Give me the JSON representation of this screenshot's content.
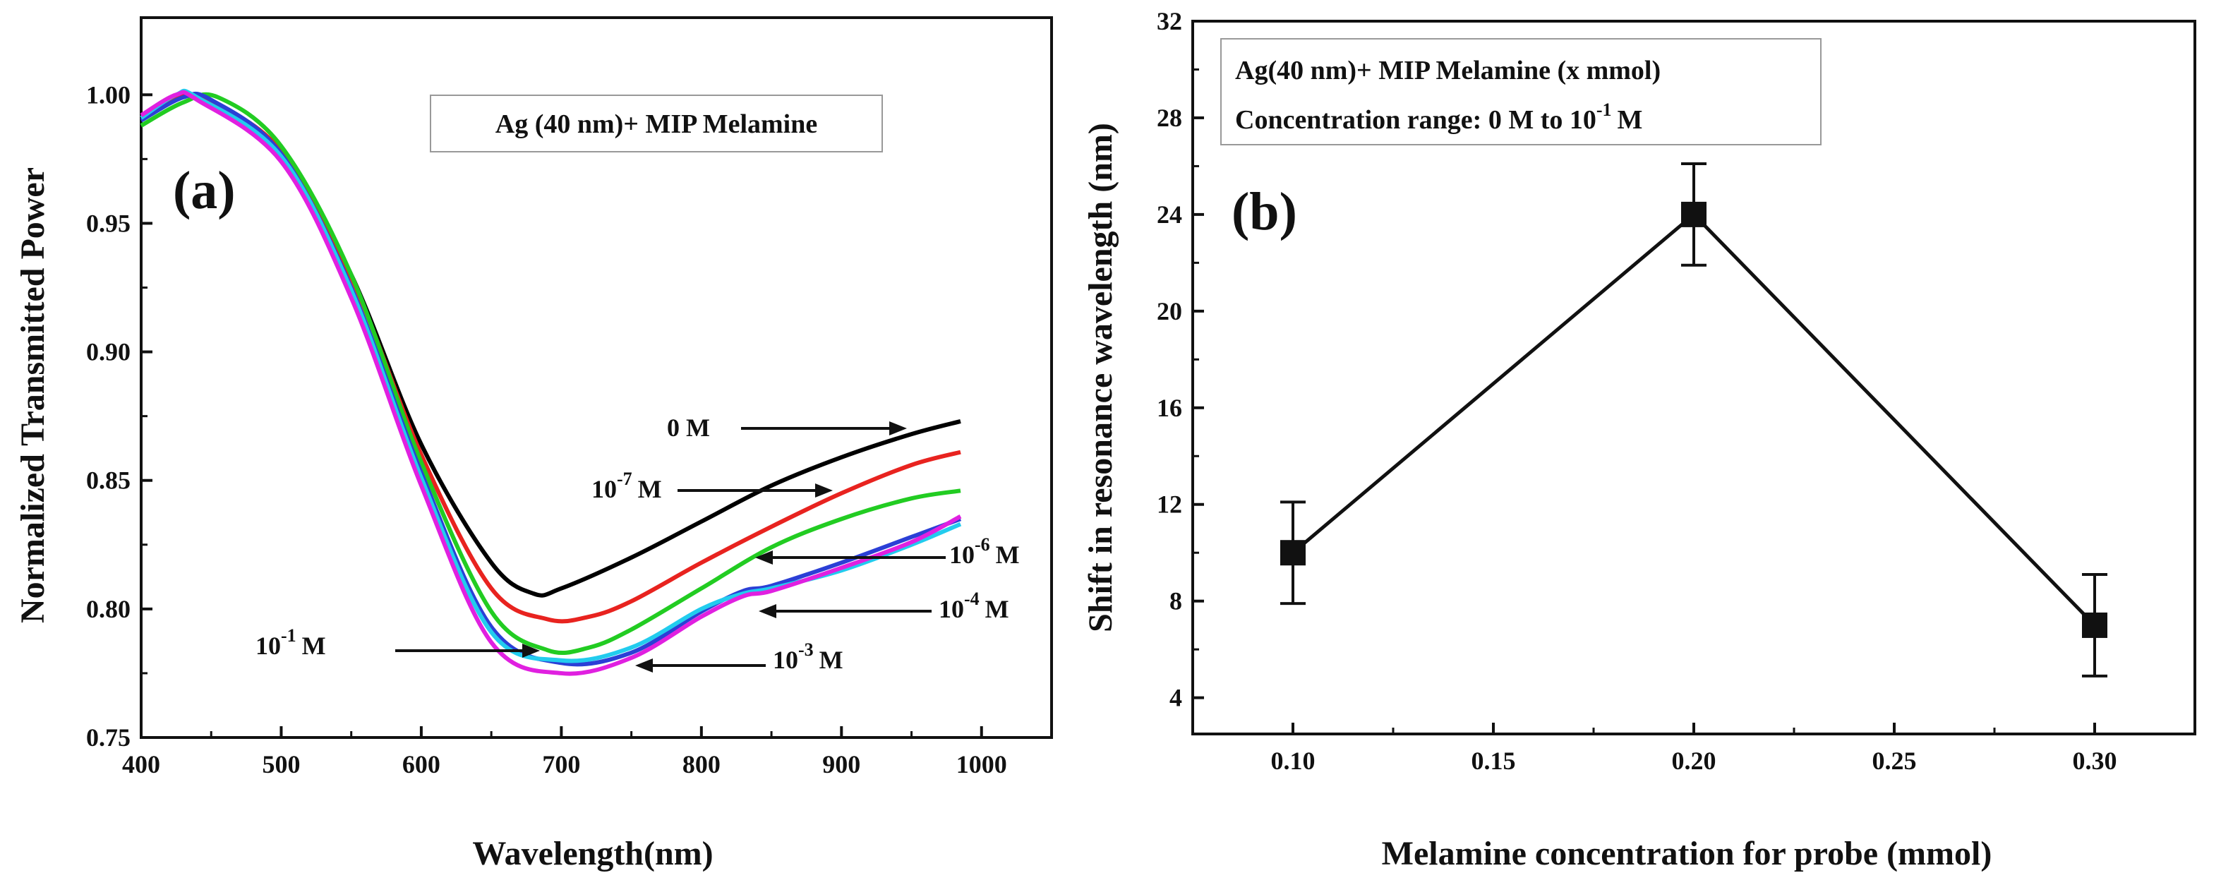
{
  "chart_data": [
    {
      "panel": "(a)",
      "type": "line",
      "xlabel": "Wavelength(nm)",
      "ylabel": "Normalized Transmitted Power",
      "legend": "Ag (40 nm)+ MIP Melamine",
      "xlim": [
        400,
        1050
      ],
      "ylim": [
        0.75,
        1.03
      ],
      "xticks": [
        400,
        500,
        600,
        700,
        800,
        900,
        1000
      ],
      "yticks": [
        0.75,
        0.8,
        0.85,
        0.9,
        0.95,
        1.0
      ],
      "xtick_labels": [
        "400",
        "500",
        "600",
        "700",
        "800",
        "900",
        "1000"
      ],
      "ytick_labels": [
        "0.75",
        "0.80",
        "0.85",
        "0.90",
        "0.95",
        "1.00"
      ],
      "series": [
        {
          "name": "0 M",
          "color": "#000000",
          "x": [
            400,
            425,
            450,
            500,
            550,
            600,
            650,
            680,
            700,
            750,
            800,
            850,
            900,
            950,
            985
          ],
          "y": [
            0.992,
            0.999,
            0.997,
            0.978,
            0.93,
            0.864,
            0.818,
            0.806,
            0.808,
            0.82,
            0.834,
            0.848,
            0.859,
            0.868,
            0.873
          ]
        },
        {
          "name": "10^-7 M",
          "color": "#e8231f",
          "x": [
            400,
            425,
            450,
            500,
            550,
            600,
            650,
            690,
            720,
            750,
            800,
            850,
            900,
            950,
            985
          ],
          "y": [
            0.991,
            0.999,
            0.997,
            0.978,
            0.929,
            0.86,
            0.808,
            0.796,
            0.797,
            0.803,
            0.818,
            0.832,
            0.845,
            0.856,
            0.861
          ]
        },
        {
          "name": "10^-6 M",
          "color": "#22cc22",
          "x": [
            400,
            430,
            455,
            500,
            550,
            600,
            650,
            690,
            720,
            750,
            800,
            850,
            900,
            950,
            985
          ],
          "y": [
            0.988,
            0.997,
            0.999,
            0.98,
            0.93,
            0.857,
            0.799,
            0.784,
            0.785,
            0.792,
            0.808,
            0.824,
            0.835,
            0.843,
            0.846
          ]
        },
        {
          "name": "10^-4 M",
          "color": "#2b3fd6",
          "x": [
            400,
            430,
            450,
            500,
            550,
            600,
            650,
            700,
            750,
            800,
            830,
            850,
            900,
            950,
            985
          ],
          "y": [
            0.99,
            0.999,
            0.998,
            0.977,
            0.925,
            0.853,
            0.793,
            0.779,
            0.783,
            0.799,
            0.807,
            0.809,
            0.818,
            0.828,
            0.835
          ]
        },
        {
          "name": "10^-3 M",
          "color": "#22ccee",
          "x": [
            400,
            425,
            440,
            500,
            550,
            600,
            650,
            700,
            750,
            800,
            830,
            850,
            900,
            950,
            985
          ],
          "y": [
            0.991,
            1.0,
            0.999,
            0.976,
            0.924,
            0.851,
            0.791,
            0.78,
            0.785,
            0.8,
            0.806,
            0.808,
            0.815,
            0.825,
            0.833
          ]
        },
        {
          "name": "10^-1 M",
          "color": "#e020e0",
          "x": [
            400,
            425,
            440,
            500,
            550,
            600,
            650,
            700,
            750,
            800,
            830,
            850,
            900,
            950,
            985
          ],
          "y": [
            0.992,
            1.0,
            0.998,
            0.974,
            0.921,
            0.848,
            0.787,
            0.775,
            0.781,
            0.797,
            0.805,
            0.807,
            0.816,
            0.826,
            0.836
          ]
        }
      ],
      "annotations": [
        {
          "text": "0 M",
          "base": "0 M",
          "exp": "",
          "unit": ""
        },
        {
          "text": "10-7 M",
          "base": "10",
          "exp": "-7",
          "unit": "M"
        },
        {
          "text": "10-6 M",
          "base": "10",
          "exp": "-6",
          "unit": "M"
        },
        {
          "text": "10-4 M",
          "base": "10",
          "exp": "-4",
          "unit": "M"
        },
        {
          "text": "10-3 M",
          "base": "10",
          "exp": "-3",
          "unit": "M"
        },
        {
          "text": "10-1 M",
          "base": "10",
          "exp": "-1",
          "unit": "M"
        }
      ]
    },
    {
      "panel": "(b)",
      "type": "line",
      "xlabel": "Melamine concentration for probe (mmol)",
      "ylabel": "Shift in resonance wavelength (nm)",
      "legend_line1": "Ag(40 nm)+ MIP Melamine (x mmol)",
      "legend_line2_prefix": "Concentration range: 0 M to 10",
      "legend_line2_exp": "-1",
      "legend_line2_suffix": "M",
      "xlim": [
        0.075,
        0.325
      ],
      "ylim": [
        2.5,
        32
      ],
      "xticks": [
        0.1,
        0.15,
        0.2,
        0.25,
        0.3
      ],
      "yticks": [
        4,
        8,
        12,
        16,
        20,
        24,
        28,
        32
      ],
      "xtick_labels": [
        "0.10",
        "0.15",
        "0.20",
        "0.25",
        "0.30"
      ],
      "ytick_labels": [
        "4",
        "8",
        "12",
        "16",
        "20",
        "24",
        "28",
        "32"
      ],
      "x": [
        0.1,
        0.2,
        0.3
      ],
      "y": [
        10,
        24,
        7
      ],
      "error": [
        2.1,
        2.1,
        2.1
      ]
    }
  ]
}
